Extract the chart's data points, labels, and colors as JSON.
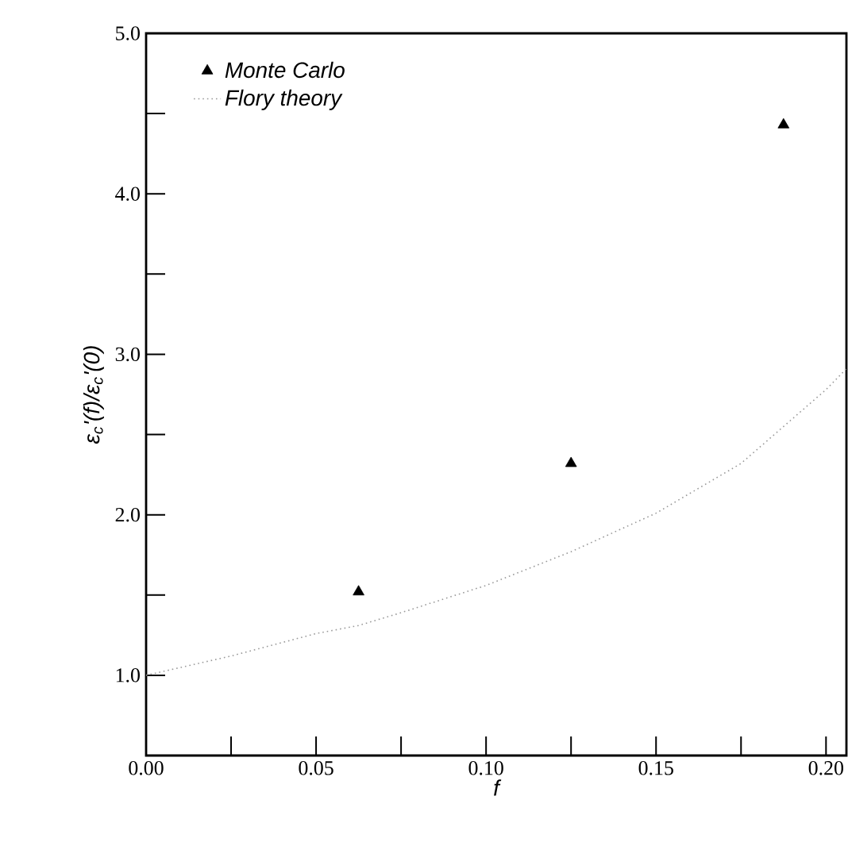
{
  "chart_data": {
    "type": "scatter",
    "xlabel": "f",
    "ylabel": "ε$_{c}$'(f)/ε$_{c}$'(0)",
    "xlim": [
      0,
      0.206
    ],
    "ylim": [
      0.5,
      5.0
    ],
    "xticks": [
      {
        "value": 0,
        "label": "0.00"
      },
      {
        "value": 0.025,
        "label": null
      },
      {
        "value": 0.05,
        "label": "0.05"
      },
      {
        "value": 0.075,
        "label": null
      },
      {
        "value": 0.1,
        "label": "0.10"
      },
      {
        "value": 0.125,
        "label": null
      },
      {
        "value": 0.15,
        "label": "0.15"
      },
      {
        "value": 0.175,
        "label": null
      },
      {
        "value": 0.2,
        "label": "0.20"
      }
    ],
    "yticks": [
      {
        "value": 1.0,
        "label": "1.0"
      },
      {
        "value": 1.5,
        "label": null
      },
      {
        "value": 2.0,
        "label": "2.0"
      },
      {
        "value": 2.5,
        "label": null
      },
      {
        "value": 3.0,
        "label": "3.0"
      },
      {
        "value": 3.5,
        "label": null
      },
      {
        "value": 4.0,
        "label": "4.0"
      },
      {
        "value": 4.5,
        "label": null
      },
      {
        "value": 5.0,
        "label": "5.0"
      }
    ],
    "legend": "top left",
    "grid": false,
    "series": [
      {
        "name": "Monte Carlo",
        "marker": "triangle",
        "color": "#000000",
        "x": [
          0.0625,
          0.125,
          0.1875
        ],
        "values": [
          1.52,
          2.32,
          4.43
        ]
      },
      {
        "name": "Flory theory",
        "type": "line",
        "marker": "none",
        "line_style": "dotted",
        "color": "#999999",
        "x": [
          0,
          0.025,
          0.05,
          0.0625,
          0.075,
          0.1,
          0.125,
          0.15,
          0.175,
          0.1875,
          0.2,
          0.206
        ],
        "values": [
          1.0,
          1.12,
          1.26,
          1.31,
          1.39,
          1.56,
          1.77,
          2.01,
          2.32,
          2.55,
          2.78,
          2.91
        ]
      }
    ]
  }
}
